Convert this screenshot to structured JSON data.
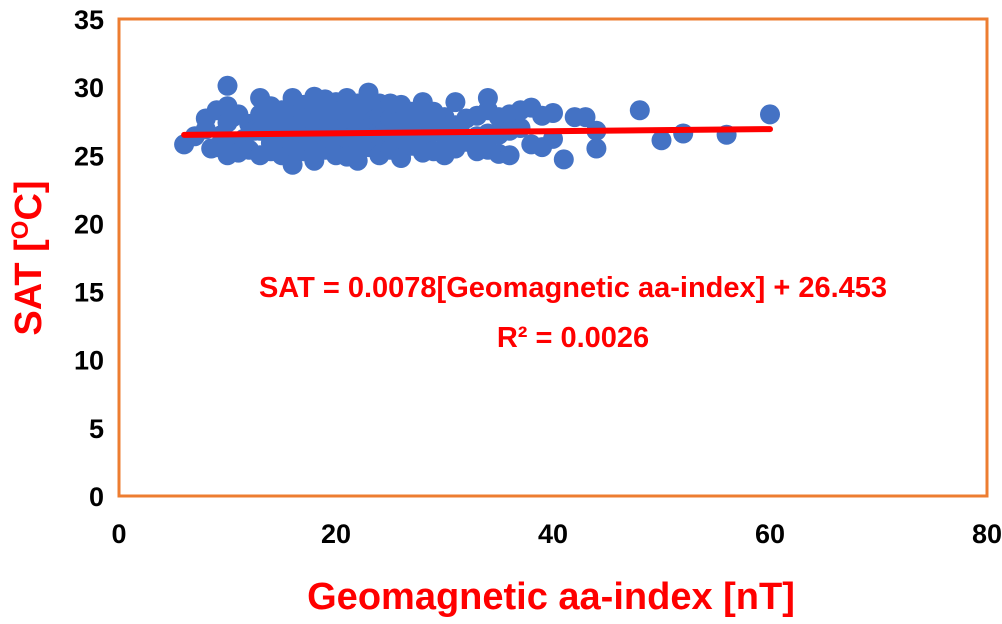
{
  "chart_data": {
    "type": "scatter",
    "title": "",
    "xlabel": "Geomagnetic aa-index [nT]",
    "ylabel": "SAT [",
    "ylabel_sup": "O",
    "ylabel_unit": "C]",
    "xlim": [
      0,
      80
    ],
    "ylim": [
      0,
      35
    ],
    "xticks": [
      "0",
      "20",
      "40",
      "60",
      "80"
    ],
    "yticks": [
      "0",
      "5",
      "10",
      "15",
      "20",
      "25",
      "30",
      "35"
    ],
    "grid": false,
    "legend": "none",
    "colors": {
      "points": "#4472c4",
      "trendline": "#ff0000",
      "labels": "#ff0000",
      "frame": "#ed7d31"
    },
    "annotations": {
      "equation": "SAT = 0.0078[Geomagnetic aa-index] + 26.453",
      "r_squared": "R² = 0.0026"
    },
    "trendline": {
      "slope": 0.0078,
      "intercept": 26.453,
      "x_start": 6,
      "x_end": 60
    },
    "series": [
      {
        "points": [
          [
            6,
            25.8
          ],
          [
            7,
            26.4
          ],
          [
            8,
            26.9
          ],
          [
            8,
            27.7
          ],
          [
            8.5,
            25.5
          ],
          [
            9,
            28.3
          ],
          [
            9,
            25.6
          ],
          [
            9.5,
            26.5
          ],
          [
            10,
            30.1
          ],
          [
            10,
            28.6
          ],
          [
            10,
            27.4
          ],
          [
            10,
            26.0
          ],
          [
            10,
            25.0
          ],
          [
            10.5,
            27.8
          ],
          [
            11,
            28.0
          ],
          [
            11,
            25.2
          ],
          [
            11.5,
            26.2
          ],
          [
            12,
            27.3
          ],
          [
            12,
            25.4
          ],
          [
            12.5,
            26.8
          ],
          [
            13,
            29.2
          ],
          [
            13,
            28.0
          ],
          [
            13,
            26.8
          ],
          [
            13,
            25.0
          ],
          [
            13.5,
            27.2
          ],
          [
            14,
            28.6
          ],
          [
            14,
            27.6
          ],
          [
            14,
            25.9
          ],
          [
            14,
            25.3
          ],
          [
            14.5,
            26.6
          ],
          [
            15,
            28.3
          ],
          [
            15,
            27.4
          ],
          [
            15,
            25.0
          ],
          [
            15.5,
            26.2
          ],
          [
            16,
            29.2
          ],
          [
            16,
            28.8
          ],
          [
            16,
            27.9
          ],
          [
            16,
            26.9
          ],
          [
            16,
            25.4
          ],
          [
            16,
            24.3
          ],
          [
            16.5,
            27.2
          ],
          [
            17,
            28.7
          ],
          [
            17,
            27.7
          ],
          [
            17,
            26.4
          ],
          [
            17,
            25.3
          ],
          [
            17.5,
            26.0
          ],
          [
            18,
            29.3
          ],
          [
            18,
            28.4
          ],
          [
            18,
            27.4
          ],
          [
            18,
            25.6
          ],
          [
            18,
            24.6
          ],
          [
            18.5,
            26.6
          ],
          [
            19,
            29.1
          ],
          [
            19,
            28.0
          ],
          [
            19,
            27.0
          ],
          [
            19,
            25.4
          ],
          [
            19.5,
            26.2
          ],
          [
            20,
            28.9
          ],
          [
            20,
            27.9
          ],
          [
            20,
            26.9
          ],
          [
            20,
            25.8
          ],
          [
            20,
            25.0
          ],
          [
            20.5,
            28.3
          ],
          [
            21,
            29.2
          ],
          [
            21,
            28.2
          ],
          [
            21,
            27.4
          ],
          [
            21,
            26.2
          ],
          [
            21,
            24.9
          ],
          [
            21.5,
            27.6
          ],
          [
            22,
            28.8
          ],
          [
            22,
            27.6
          ],
          [
            22,
            26.5
          ],
          [
            22,
            25.3
          ],
          [
            22,
            24.6
          ],
          [
            22.5,
            26.9
          ],
          [
            23,
            29.6
          ],
          [
            23,
            28.4
          ],
          [
            23,
            26.9
          ],
          [
            23,
            25.6
          ],
          [
            23.5,
            27.6
          ],
          [
            24,
            28.8
          ],
          [
            24,
            27.8
          ],
          [
            24,
            26.4
          ],
          [
            24,
            25.0
          ],
          [
            24.5,
            26.8
          ],
          [
            25,
            28.8
          ],
          [
            25,
            27.7
          ],
          [
            25,
            26.6
          ],
          [
            25,
            25.4
          ],
          [
            25.5,
            27.4
          ],
          [
            26,
            28.7
          ],
          [
            26,
            27.5
          ],
          [
            26,
            26.2
          ],
          [
            26,
            24.8
          ],
          [
            26.5,
            27.9
          ],
          [
            27,
            28.2
          ],
          [
            27,
            27.2
          ],
          [
            27,
            25.7
          ],
          [
            27.5,
            26.8
          ],
          [
            28,
            28.9
          ],
          [
            28,
            27.8
          ],
          [
            28,
            26.3
          ],
          [
            28,
            25.2
          ],
          [
            28.5,
            27.5
          ],
          [
            29,
            28.2
          ],
          [
            29,
            26.7
          ],
          [
            29,
            25.3
          ],
          [
            29.5,
            27.3
          ],
          [
            30,
            27.8
          ],
          [
            30,
            26.4
          ],
          [
            30,
            25.0
          ],
          [
            30.5,
            27.2
          ],
          [
            31,
            28.9
          ],
          [
            31,
            27.2
          ],
          [
            31,
            25.5
          ],
          [
            31.5,
            26.6
          ],
          [
            32,
            27.7
          ],
          [
            32,
            26.0
          ],
          [
            33,
            27.9
          ],
          [
            33,
            26.4
          ],
          [
            33,
            25.3
          ],
          [
            34,
            29.2
          ],
          [
            34,
            28.3
          ],
          [
            34,
            26.6
          ],
          [
            34,
            25.4
          ],
          [
            35,
            27.8
          ],
          [
            35,
            26.5
          ],
          [
            35,
            25.1
          ],
          [
            36,
            28.0
          ],
          [
            36,
            26.8
          ],
          [
            36,
            25.0
          ],
          [
            37,
            28.3
          ],
          [
            37,
            27.0
          ],
          [
            38,
            28.5
          ],
          [
            38,
            25.8
          ],
          [
            39,
            27.9
          ],
          [
            39,
            25.6
          ],
          [
            40,
            28.1
          ],
          [
            40,
            26.2
          ],
          [
            41,
            24.7
          ],
          [
            42,
            27.8
          ],
          [
            43,
            27.8
          ],
          [
            44,
            26.8
          ],
          [
            44,
            25.5
          ],
          [
            48,
            28.3
          ],
          [
            50,
            26.1
          ],
          [
            52,
            26.6
          ],
          [
            56,
            26.5
          ],
          [
            60,
            28.0
          ]
        ]
      }
    ]
  }
}
